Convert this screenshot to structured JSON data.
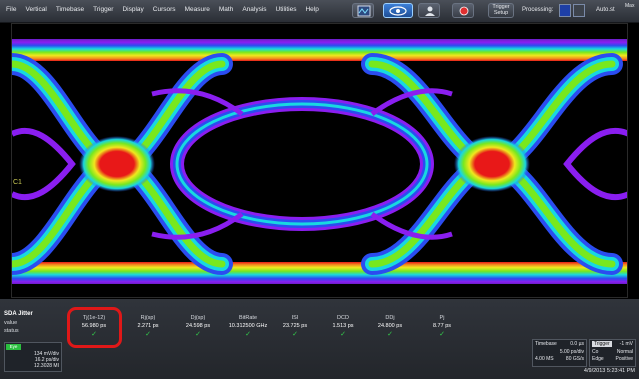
{
  "menu": [
    "File",
    "Vertical",
    "Timebase",
    "Trigger",
    "Display",
    "Cursors",
    "Measure",
    "Math",
    "Analysis",
    "Utilities",
    "Help"
  ],
  "toolbar": {
    "trigger_setup_line1": "Trigger",
    "trigger_setup_line2": "Setup",
    "processing_label": "Processing:",
    "auto_label": "Auto.st",
    "max_label": "Max",
    "icons": [
      "scope-icon",
      "eye-diagram-icon",
      "person-icon",
      "record-icon"
    ]
  },
  "display": {
    "channel_marker": "C1",
    "colors": {
      "persistence_low": "#8a1ef0",
      "persistence_mid_low": "#2b4cf0",
      "persistence_mid": "#18d8e0",
      "persistence_mid_high": "#78e81e",
      "persistence_high_yellow": "#f0e81e",
      "persistence_peak": "#e81818"
    }
  },
  "measurement": {
    "name": "SDA Jitter",
    "rows": [
      "value",
      "status"
    ],
    "params": [
      {
        "name": "Tj(1e-12)",
        "value": "56.980 ps",
        "status": "✓"
      },
      {
        "name": "Rj(sp)",
        "value": "2.271 ps",
        "status": "✓"
      },
      {
        "name": "Dj(sp)",
        "value": "24.598 ps",
        "status": "✓"
      },
      {
        "name": "BitRate",
        "value": "10.312500 GHz",
        "status": "✓"
      },
      {
        "name": "ISI",
        "value": "23.725 ps",
        "status": "✓"
      },
      {
        "name": "DCD",
        "value": "1.513 ps",
        "status": "✓"
      },
      {
        "name": "DDj",
        "value": "24.800 ps",
        "status": "✓"
      },
      {
        "name": "Pj",
        "value": "8.77 ps",
        "status": "✓"
      }
    ]
  },
  "channel_box": {
    "badge": "Eye",
    "vdiv": "134 mV/div",
    "tdiv": "16.2 ps/div",
    "count": "12.3028 MI"
  },
  "timebase": {
    "label": "Timebase",
    "delay": "0.0 µs",
    "tdiv": "5.00 ps/div",
    "samples": "4.00 MS",
    "rate": "80 GS/s"
  },
  "trigger": {
    "label": "Trigger",
    "level": "-1 mV",
    "mode": "Normal",
    "type": "Edge",
    "slope": "Positive",
    "coupling": "Co"
  },
  "datetime": "4/9/2013 5:23:41 PM"
}
